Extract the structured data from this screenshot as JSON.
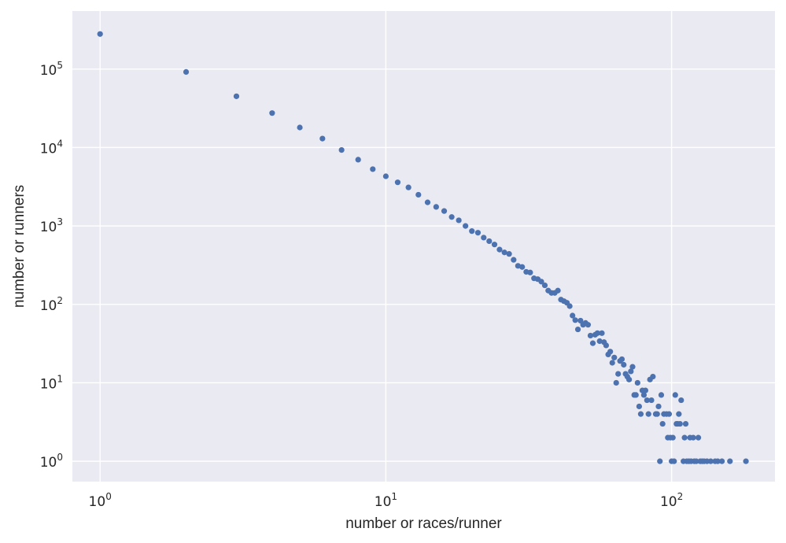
{
  "chart_data": {
    "type": "scatter",
    "title": "",
    "xlabel": "number or races/runner",
    "ylabel": "number or runners",
    "xscale": "log",
    "yscale": "log",
    "xlim": [
      0.8,
      230
    ],
    "ylim": [
      0.55,
      550000
    ],
    "grid": true,
    "marker_color": "#4c72b0",
    "background_color": "#eaeaf2",
    "x_ticks": [
      {
        "base": "10",
        "exp": "0",
        "value": 1
      },
      {
        "base": "10",
        "exp": "1",
        "value": 10
      },
      {
        "base": "10",
        "exp": "2",
        "value": 100
      }
    ],
    "y_ticks": [
      {
        "base": "10",
        "exp": "0",
        "value": 1
      },
      {
        "base": "10",
        "exp": "1",
        "value": 10
      },
      {
        "base": "10",
        "exp": "2",
        "value": 100
      },
      {
        "base": "10",
        "exp": "3",
        "value": 1000
      },
      {
        "base": "10",
        "exp": "4",
        "value": 10000
      },
      {
        "base": "10",
        "exp": "5",
        "value": 100000
      }
    ],
    "points": [
      [
        1,
        280000
      ],
      [
        2,
        92000
      ],
      [
        3,
        45000
      ],
      [
        4,
        27500
      ],
      [
        5,
        18000
      ],
      [
        6,
        13000
      ],
      [
        7,
        9300
      ],
      [
        8,
        7000
      ],
      [
        9,
        5300
      ],
      [
        10,
        4300
      ],
      [
        11,
        3600
      ],
      [
        12,
        3100
      ],
      [
        13,
        2500
      ],
      [
        14,
        2000
      ],
      [
        15,
        1750
      ],
      [
        16,
        1550
      ],
      [
        17,
        1300
      ],
      [
        18,
        1180
      ],
      [
        19,
        1000
      ],
      [
        20,
        860
      ],
      [
        21,
        820
      ],
      [
        22,
        710
      ],
      [
        23,
        640
      ],
      [
        24,
        580
      ],
      [
        25,
        500
      ],
      [
        26,
        460
      ],
      [
        27,
        440
      ],
      [
        28,
        370
      ],
      [
        29,
        310
      ],
      [
        30,
        300
      ],
      [
        31,
        260
      ],
      [
        32,
        255
      ],
      [
        33,
        215
      ],
      [
        34,
        210
      ],
      [
        35,
        195
      ],
      [
        36,
        175
      ],
      [
        37,
        150
      ],
      [
        38,
        140
      ],
      [
        39,
        140
      ],
      [
        40,
        150
      ],
      [
        41,
        115
      ],
      [
        42,
        110
      ],
      [
        43,
        105
      ],
      [
        44,
        95
      ],
      [
        45,
        72
      ],
      [
        46,
        63
      ],
      [
        47,
        48
      ],
      [
        48,
        62
      ],
      [
        49,
        55
      ],
      [
        50,
        58
      ],
      [
        51,
        55
      ],
      [
        52,
        40
      ],
      [
        53,
        32
      ],
      [
        54,
        41
      ],
      [
        55,
        43
      ],
      [
        56,
        34
      ],
      [
        57,
        43
      ],
      [
        58,
        33
      ],
      [
        59,
        30
      ],
      [
        60,
        23
      ],
      [
        61,
        25
      ],
      [
        62,
        18
      ],
      [
        63,
        21
      ],
      [
        64,
        10
      ],
      [
        65,
        13
      ],
      [
        66,
        19
      ],
      [
        67,
        20
      ],
      [
        68,
        17
      ],
      [
        69,
        13
      ],
      [
        70,
        12
      ],
      [
        71,
        11
      ],
      [
        72,
        14
      ],
      [
        73,
        16
      ],
      [
        74,
        7
      ],
      [
        75,
        7
      ],
      [
        76,
        10
      ],
      [
        77,
        5
      ],
      [
        78,
        4
      ],
      [
        79,
        8
      ],
      [
        80,
        7
      ],
      [
        81,
        8
      ],
      [
        82,
        6
      ],
      [
        83,
        4
      ],
      [
        84,
        11
      ],
      [
        85,
        6
      ],
      [
        86,
        12
      ],
      [
        88,
        4
      ],
      [
        89,
        4
      ],
      [
        90,
        5
      ],
      [
        91,
        1
      ],
      [
        92,
        7
      ],
      [
        93,
        3
      ],
      [
        94,
        4
      ],
      [
        96,
        4
      ],
      [
        97,
        2
      ],
      [
        98,
        4
      ],
      [
        99,
        2
      ],
      [
        100,
        1
      ],
      [
        101,
        2
      ],
      [
        102,
        1
      ],
      [
        103,
        7
      ],
      [
        104,
        3
      ],
      [
        105,
        3
      ],
      [
        106,
        4
      ],
      [
        107,
        3
      ],
      [
        108,
        6
      ],
      [
        110,
        1
      ],
      [
        111,
        2
      ],
      [
        112,
        3
      ],
      [
        113,
        1
      ],
      [
        115,
        1
      ],
      [
        116,
        2
      ],
      [
        117,
        1
      ],
      [
        119,
        2
      ],
      [
        120,
        1
      ],
      [
        122,
        1
      ],
      [
        124,
        2
      ],
      [
        126,
        1
      ],
      [
        128,
        1
      ],
      [
        130,
        1
      ],
      [
        133,
        1
      ],
      [
        137,
        1
      ],
      [
        142,
        1
      ],
      [
        145,
        1
      ],
      [
        150,
        1
      ],
      [
        160,
        1
      ],
      [
        182,
        1
      ]
    ]
  }
}
